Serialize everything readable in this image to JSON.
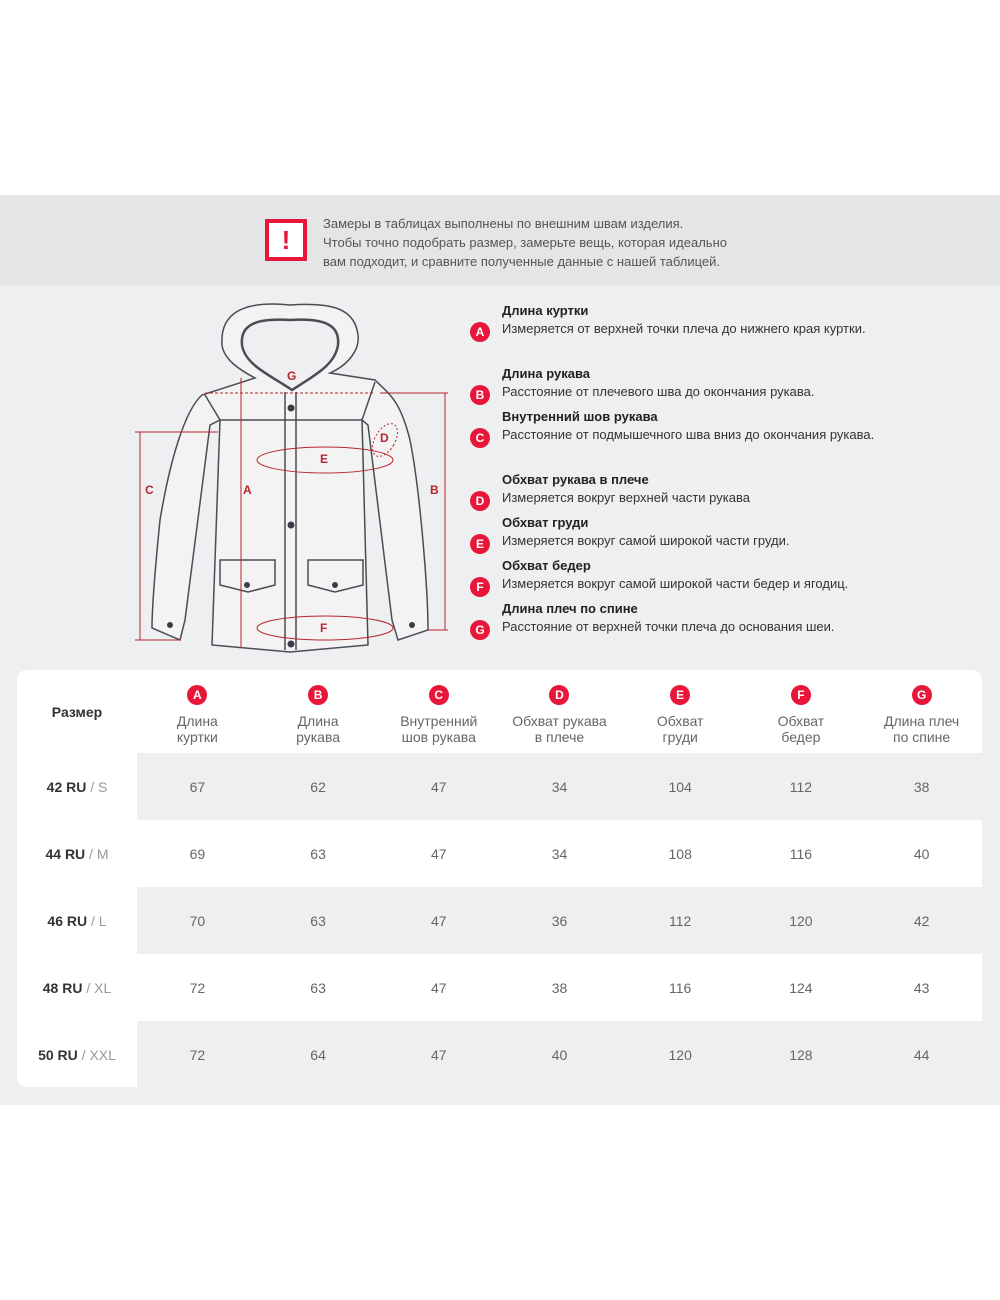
{
  "notice": {
    "icon": "exclamation-icon",
    "lines": [
      "Замеры в таблицах выполнены по внешним швам изделия.",
      "Чтобы точно подобрать размер, замерьте вещь, которая идеально",
      "вам подходит, и сравните полученные данные с нашей таблицей."
    ]
  },
  "accent": "#e8173a",
  "diagram_labels": [
    "A",
    "B",
    "C",
    "D",
    "E",
    "F",
    "G"
  ],
  "legend": [
    {
      "key": "A",
      "title": "Длина куртки",
      "desc": "Измеряется от верхней точки плеча до нижнего края куртки."
    },
    {
      "key": "B",
      "title": "Длина рукава",
      "desc": "Расстояние от плечевого шва до окончания рукава."
    },
    {
      "key": "C",
      "title": "Внутренний шов рукава",
      "desc": "Расстояние от подмышечного шва вниз до окончания рукава."
    },
    {
      "key": "D",
      "title": "Обхват рукава в плече",
      "desc": "Измеряется вокруг верхней части рукава"
    },
    {
      "key": "E",
      "title": "Обхват груди",
      "desc": "Измеряется вокруг самой широкой части груди."
    },
    {
      "key": "F",
      "title": "Обхват бедер",
      "desc": "Измеряется вокруг самой широкой части бедер и ягодиц."
    },
    {
      "key": "G",
      "title": "Длина плеч по спине",
      "desc": "Расстояние от верхней точки плеча до основания шеи."
    }
  ],
  "table": {
    "size_header": "Размер",
    "columns": [
      {
        "key": "A",
        "l1": "Длина",
        "l2": "куртки"
      },
      {
        "key": "B",
        "l1": "Длина",
        "l2": "рукава"
      },
      {
        "key": "C",
        "l1": "Внутренний",
        "l2": "шов рукава"
      },
      {
        "key": "D",
        "l1": "Обхват рукава",
        "l2": "в плече"
      },
      {
        "key": "E",
        "l1": "Обхват",
        "l2": "груди"
      },
      {
        "key": "F",
        "l1": "Обхват",
        "l2": "бедер"
      },
      {
        "key": "G",
        "l1": "Длина плеч",
        "l2": "по спине"
      }
    ],
    "rows": [
      {
        "ru": "42 RU",
        "intl": " / S",
        "v": [
          "67",
          "62",
          "47",
          "34",
          "104",
          "112",
          "38"
        ]
      },
      {
        "ru": "44 RU",
        "intl": " / M",
        "v": [
          "69",
          "63",
          "47",
          "34",
          "108",
          "116",
          "40"
        ]
      },
      {
        "ru": "46 RU",
        "intl": " / L",
        "v": [
          "70",
          "63",
          "47",
          "36",
          "112",
          "120",
          "42"
        ]
      },
      {
        "ru": "48 RU",
        "intl": " / XL",
        "v": [
          "72",
          "63",
          "47",
          "38",
          "116",
          "124",
          "43"
        ]
      },
      {
        "ru": "50 RU",
        "intl": " / XXL",
        "v": [
          "72",
          "64",
          "47",
          "40",
          "120",
          "128",
          "44"
        ]
      }
    ]
  }
}
